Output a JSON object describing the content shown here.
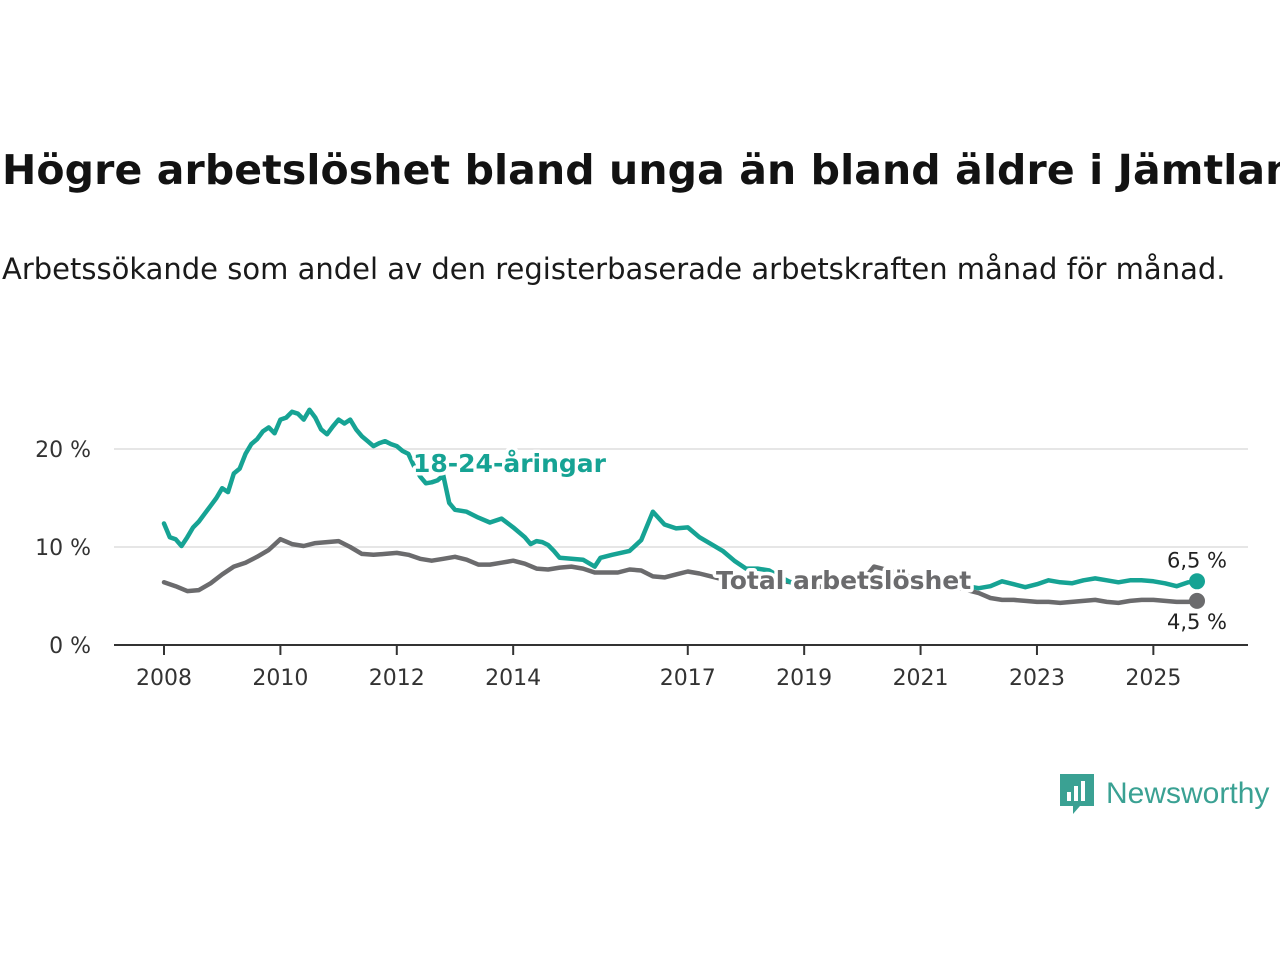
{
  "title": "Högre arbetslöshet bland unga än bland äldre i Jämtland",
  "subtitle": "Arbetssökande som andel av den registerbaserade arbetskraften månad för månad.",
  "brand": "Newsworthy",
  "colors": {
    "youth": "#16a394",
    "total": "#6b6b6d",
    "grid": "#dddddd",
    "axis": "#333333"
  },
  "chart_data": {
    "type": "line",
    "title": "Högre arbetslöshet bland unga än bland äldre i Jämtland",
    "ylabel": "",
    "xlabel": "",
    "xlim": [
      2008.0,
      2025.75
    ],
    "ylim": [
      0,
      25
    ],
    "yticks": [
      0,
      10,
      20
    ],
    "ytick_labels": [
      "0 %",
      "10 %",
      "20 %"
    ],
    "xticks": [
      2008,
      2010,
      2012,
      2014,
      2017,
      2019,
      2021,
      2023,
      2025
    ],
    "xtick_labels": [
      "2008",
      "2010",
      "2012",
      "2014",
      "2017",
      "2019",
      "2021",
      "2023",
      "2025"
    ],
    "series": [
      {
        "name": "18-24-åringar",
        "label": "18-24-åringar",
        "end_label": "6,5 %",
        "x": [
          2008.0,
          2008.1,
          2008.2,
          2008.3,
          2008.4,
          2008.5,
          2008.6,
          2008.7,
          2008.8,
          2008.9,
          2009.0,
          2009.1,
          2009.2,
          2009.3,
          2009.4,
          2009.5,
          2009.6,
          2009.7,
          2009.8,
          2009.9,
          2010.0,
          2010.1,
          2010.2,
          2010.3,
          2010.4,
          2010.5,
          2010.6,
          2010.7,
          2010.8,
          2010.9,
          2011.0,
          2011.1,
          2011.2,
          2011.3,
          2011.4,
          2011.5,
          2011.6,
          2011.7,
          2011.8,
          2011.9,
          2012.0,
          2012.1,
          2012.2,
          2012.3,
          2012.4,
          2012.5,
          2012.6,
          2012.7,
          2012.8,
          2012.9,
          2013.0,
          2013.2,
          2013.4,
          2013.6,
          2013.8,
          2014.0,
          2014.2,
          2014.3,
          2014.4,
          2014.5,
          2014.6,
          2014.7,
          2014.8,
          2015.0,
          2015.2,
          2015.4,
          2015.5,
          2015.7,
          2016.0,
          2016.2,
          2016.4,
          2016.6,
          2016.8,
          2017.0,
          2017.2,
          2017.4,
          2017.6,
          2017.8,
          2018.0,
          2018.2,
          2018.4,
          2018.6,
          2018.8,
          2019.0,
          2019.2,
          2019.4,
          2019.6,
          2019.8,
          2020.0,
          2020.2,
          2020.3,
          2020.4,
          2020.5,
          2020.6,
          2020.8,
          2021.0,
          2021.2,
          2021.4,
          2021.6,
          2021.8,
          2022.0,
          2022.2,
          2022.4,
          2022.6,
          2022.8,
          2023.0,
          2023.2,
          2023.4,
          2023.6,
          2023.8,
          2024.0,
          2024.2,
          2024.4,
          2024.6,
          2024.8,
          2025.0,
          2025.2,
          2025.4,
          2025.6,
          2025.75
        ],
        "values": [
          12.4,
          11.0,
          10.8,
          10.1,
          11.0,
          12.0,
          12.6,
          13.4,
          14.2,
          15.0,
          16.0,
          15.6,
          17.5,
          18.0,
          19.5,
          20.5,
          21.0,
          21.8,
          22.2,
          21.6,
          23.0,
          23.2,
          23.8,
          23.6,
          23.0,
          24.0,
          23.2,
          22.0,
          21.5,
          22.3,
          23.0,
          22.6,
          23.0,
          22.0,
          21.3,
          20.8,
          20.3,
          20.6,
          20.8,
          20.5,
          20.3,
          19.8,
          19.5,
          18.2,
          17.2,
          16.5,
          16.6,
          16.8,
          17.3,
          14.5,
          13.8,
          13.6,
          13.0,
          12.5,
          12.9,
          12.0,
          11.0,
          10.3,
          10.6,
          10.5,
          10.2,
          9.6,
          8.9,
          8.8,
          8.7,
          8.0,
          8.9,
          9.2,
          9.6,
          10.7,
          13.6,
          12.3,
          11.9,
          12.0,
          11.0,
          10.3,
          9.6,
          8.6,
          7.8,
          7.8,
          7.6,
          6.9,
          6.3,
          6.7,
          7.0,
          6.2,
          6.1,
          6.7,
          6.5,
          5.8,
          6.2,
          6.6,
          6.3,
          6.5,
          6.8,
          7.0,
          6.6,
          6.6,
          6.4,
          6.0,
          5.8,
          6.0,
          6.5,
          6.2,
          5.9,
          6.2,
          6.6,
          6.4,
          6.3,
          6.6,
          6.8,
          6.6,
          6.4,
          6.6,
          6.6,
          6.5,
          6.3,
          6.0,
          6.4,
          6.5
        ]
      },
      {
        "name": "Total arbetslöshet",
        "label": "Total arbetslöshet",
        "end_label": "4,5 %",
        "x": [
          2008.0,
          2008.2,
          2008.4,
          2008.6,
          2008.8,
          2009.0,
          2009.2,
          2009.4,
          2009.6,
          2009.8,
          2010.0,
          2010.2,
          2010.4,
          2010.6,
          2010.8,
          2011.0,
          2011.2,
          2011.4,
          2011.6,
          2011.8,
          2012.0,
          2012.2,
          2012.4,
          2012.6,
          2012.8,
          2013.0,
          2013.2,
          2013.4,
          2013.6,
          2013.8,
          2014.0,
          2014.2,
          2014.4,
          2014.6,
          2014.8,
          2015.0,
          2015.2,
          2015.4,
          2015.6,
          2015.8,
          2016.0,
          2016.2,
          2016.4,
          2016.6,
          2016.8,
          2017.0,
          2017.2,
          2017.4,
          2017.6,
          2017.8,
          2018.0,
          2018.2,
          2018.4,
          2018.6,
          2018.8,
          2019.0,
          2019.2,
          2019.4,
          2019.6,
          2019.8,
          2020.0,
          2020.2,
          2020.4,
          2020.6,
          2020.8,
          2021.0,
          2021.2,
          2021.4,
          2021.6,
          2021.8,
          2022.0,
          2022.2,
          2022.4,
          2022.6,
          2022.8,
          2023.0,
          2023.2,
          2023.4,
          2023.6,
          2023.8,
          2024.0,
          2024.2,
          2024.4,
          2024.6,
          2024.8,
          2025.0,
          2025.2,
          2025.4,
          2025.6,
          2025.75
        ],
        "values": [
          6.4,
          6.0,
          5.5,
          5.6,
          6.3,
          7.2,
          8.0,
          8.4,
          9.0,
          9.7,
          10.8,
          10.3,
          10.1,
          10.4,
          10.5,
          10.6,
          10.0,
          9.3,
          9.2,
          9.3,
          9.4,
          9.2,
          8.8,
          8.6,
          8.8,
          9.0,
          8.7,
          8.2,
          8.2,
          8.4,
          8.6,
          8.3,
          7.8,
          7.7,
          7.9,
          8.0,
          7.8,
          7.4,
          7.4,
          7.4,
          7.7,
          7.6,
          7.0,
          6.9,
          7.2,
          7.5,
          7.3,
          7.0,
          6.7,
          6.6,
          6.7,
          6.5,
          6.3,
          6.5,
          6.4,
          6.2,
          6.0,
          5.9,
          6.0,
          5.8,
          6.5,
          8.0,
          7.7,
          7.4,
          7.0,
          6.6,
          6.4,
          6.2,
          5.9,
          5.6,
          5.3,
          4.8,
          4.6,
          4.6,
          4.5,
          4.4,
          4.4,
          4.3,
          4.4,
          4.5,
          4.6,
          4.4,
          4.3,
          4.5,
          4.6,
          4.6,
          4.5,
          4.4,
          4.4,
          4.5
        ]
      }
    ]
  }
}
